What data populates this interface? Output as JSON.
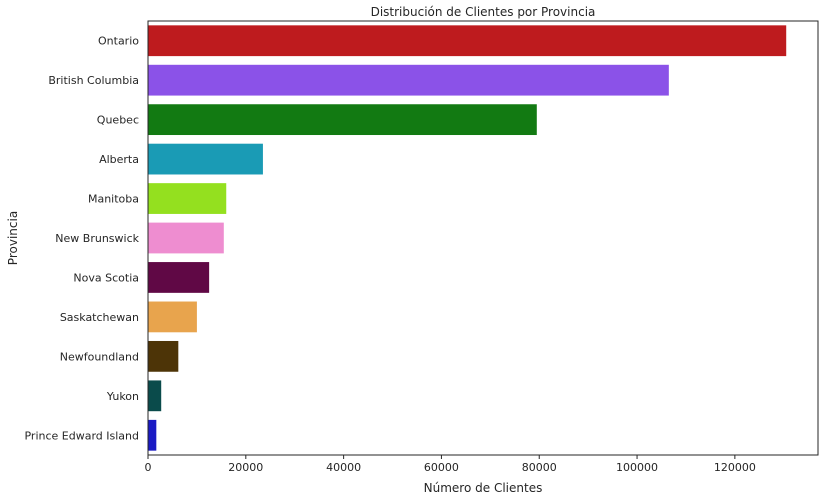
{
  "chart_data": {
    "type": "bar",
    "orientation": "horizontal",
    "title": "Distribución de Clientes por Provincia",
    "xlabel": "Número de Clientes",
    "ylabel": "Provincia",
    "xlim": [
      0,
      137000
    ],
    "xticks": [
      0,
      20000,
      40000,
      60000,
      80000,
      100000,
      120000
    ],
    "grid": false,
    "categories": [
      "Ontario",
      "British Columbia",
      "Quebec",
      "Alberta",
      "Manitoba",
      "New Brunswick",
      "Nova Scotia",
      "Saskatchewan",
      "Newfoundland",
      "Yukon",
      "Prince Edward Island"
    ],
    "values": [
      130500,
      106500,
      79500,
      23500,
      16000,
      15500,
      12500,
      10000,
      6200,
      2700,
      1700
    ],
    "colors": [
      "#be1b1e",
      "#8b52e8",
      "#127a12",
      "#1a9bb5",
      "#94e01f",
      "#ee8dd0",
      "#600845",
      "#e8a44d",
      "#4d3407",
      "#0a4b4b",
      "#1a1ac4"
    ]
  }
}
